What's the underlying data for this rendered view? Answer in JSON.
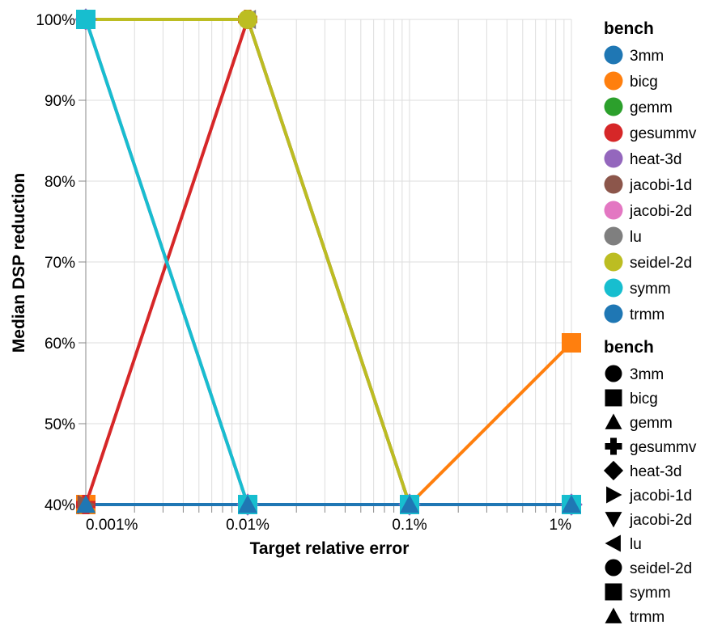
{
  "chart_data": {
    "type": "line",
    "xlabel": "Target relative error",
    "ylabel": "Median DSP reduction",
    "x_scale": "log",
    "xlim": [
      0.001,
      1
    ],
    "ylim": [
      40,
      100
    ],
    "x_ticks": [
      {
        "value": 0.001,
        "label": "0.001%"
      },
      {
        "value": 0.01,
        "label": "0.01%"
      },
      {
        "value": 0.1,
        "label": "0.1%"
      },
      {
        "value": 1,
        "label": "1%"
      }
    ],
    "y_ticks": [
      {
        "value": 40,
        "label": "40%"
      },
      {
        "value": 50,
        "label": "50%"
      },
      {
        "value": 60,
        "label": "60%"
      },
      {
        "value": 70,
        "label": "70%"
      },
      {
        "value": 80,
        "label": "80%"
      },
      {
        "value": 90,
        "label": "90%"
      },
      {
        "value": 100,
        "label": "100%"
      }
    ],
    "grid": true,
    "legend_position": "right",
    "legend_color_title": "bench",
    "legend_shape_title": "bench",
    "series": [
      {
        "name": "3mm",
        "color": "#1f77b4",
        "shape": "circle",
        "x": [
          0.001,
          0.01,
          0.1,
          1
        ],
        "y": [
          40,
          40,
          40,
          40
        ]
      },
      {
        "name": "bicg",
        "color": "#ff7f0e",
        "shape": "square",
        "x": [
          0.001,
          0.01,
          0.1,
          1
        ],
        "y": [
          40,
          40,
          40,
          60
        ]
      },
      {
        "name": "gemm",
        "color": "#2ca02c",
        "shape": "triangle-up",
        "x": [
          0.001,
          0.01,
          0.1,
          1
        ],
        "y": [
          40,
          40,
          40,
          40
        ]
      },
      {
        "name": "gesummv",
        "color": "#d62728",
        "shape": "cross",
        "x": [
          0.001,
          0.01,
          0.1,
          1
        ],
        "y": [
          40,
          100,
          40,
          40
        ]
      },
      {
        "name": "heat-3d",
        "color": "#9467bd",
        "shape": "diamond",
        "x": [
          0.001,
          0.01,
          0.1,
          1
        ],
        "y": [
          100,
          40,
          40,
          40
        ]
      },
      {
        "name": "jacobi-1d",
        "color": "#8c564b",
        "shape": "triangle-right",
        "x": [
          0.001,
          0.01,
          0.1,
          1
        ],
        "y": [
          40,
          40,
          40,
          40
        ]
      },
      {
        "name": "jacobi-2d",
        "color": "#e377c2",
        "shape": "triangle-down",
        "x": [
          0.001,
          0.01,
          0.1,
          1
        ],
        "y": [
          100,
          40,
          40,
          40
        ]
      },
      {
        "name": "lu",
        "color": "#7f7f7f",
        "shape": "triangle-left",
        "x": [
          0.001,
          0.01,
          0.1,
          1
        ],
        "y": [
          100,
          100,
          40,
          40
        ]
      },
      {
        "name": "seidel-2d",
        "color": "#bcbd22",
        "shape": "circle",
        "x": [
          0.001,
          0.01,
          0.1,
          1
        ],
        "y": [
          100,
          100,
          40,
          40
        ]
      },
      {
        "name": "symm",
        "color": "#17becf",
        "shape": "square",
        "x": [
          0.001,
          0.01,
          0.1,
          1
        ],
        "y": [
          100,
          40,
          40,
          40
        ]
      },
      {
        "name": "trmm",
        "color": "#1f77b4",
        "shape": "triangle-up",
        "x": [
          0.001,
          0.01,
          0.1,
          1
        ],
        "y": [
          40,
          40,
          40,
          40
        ]
      }
    ]
  }
}
